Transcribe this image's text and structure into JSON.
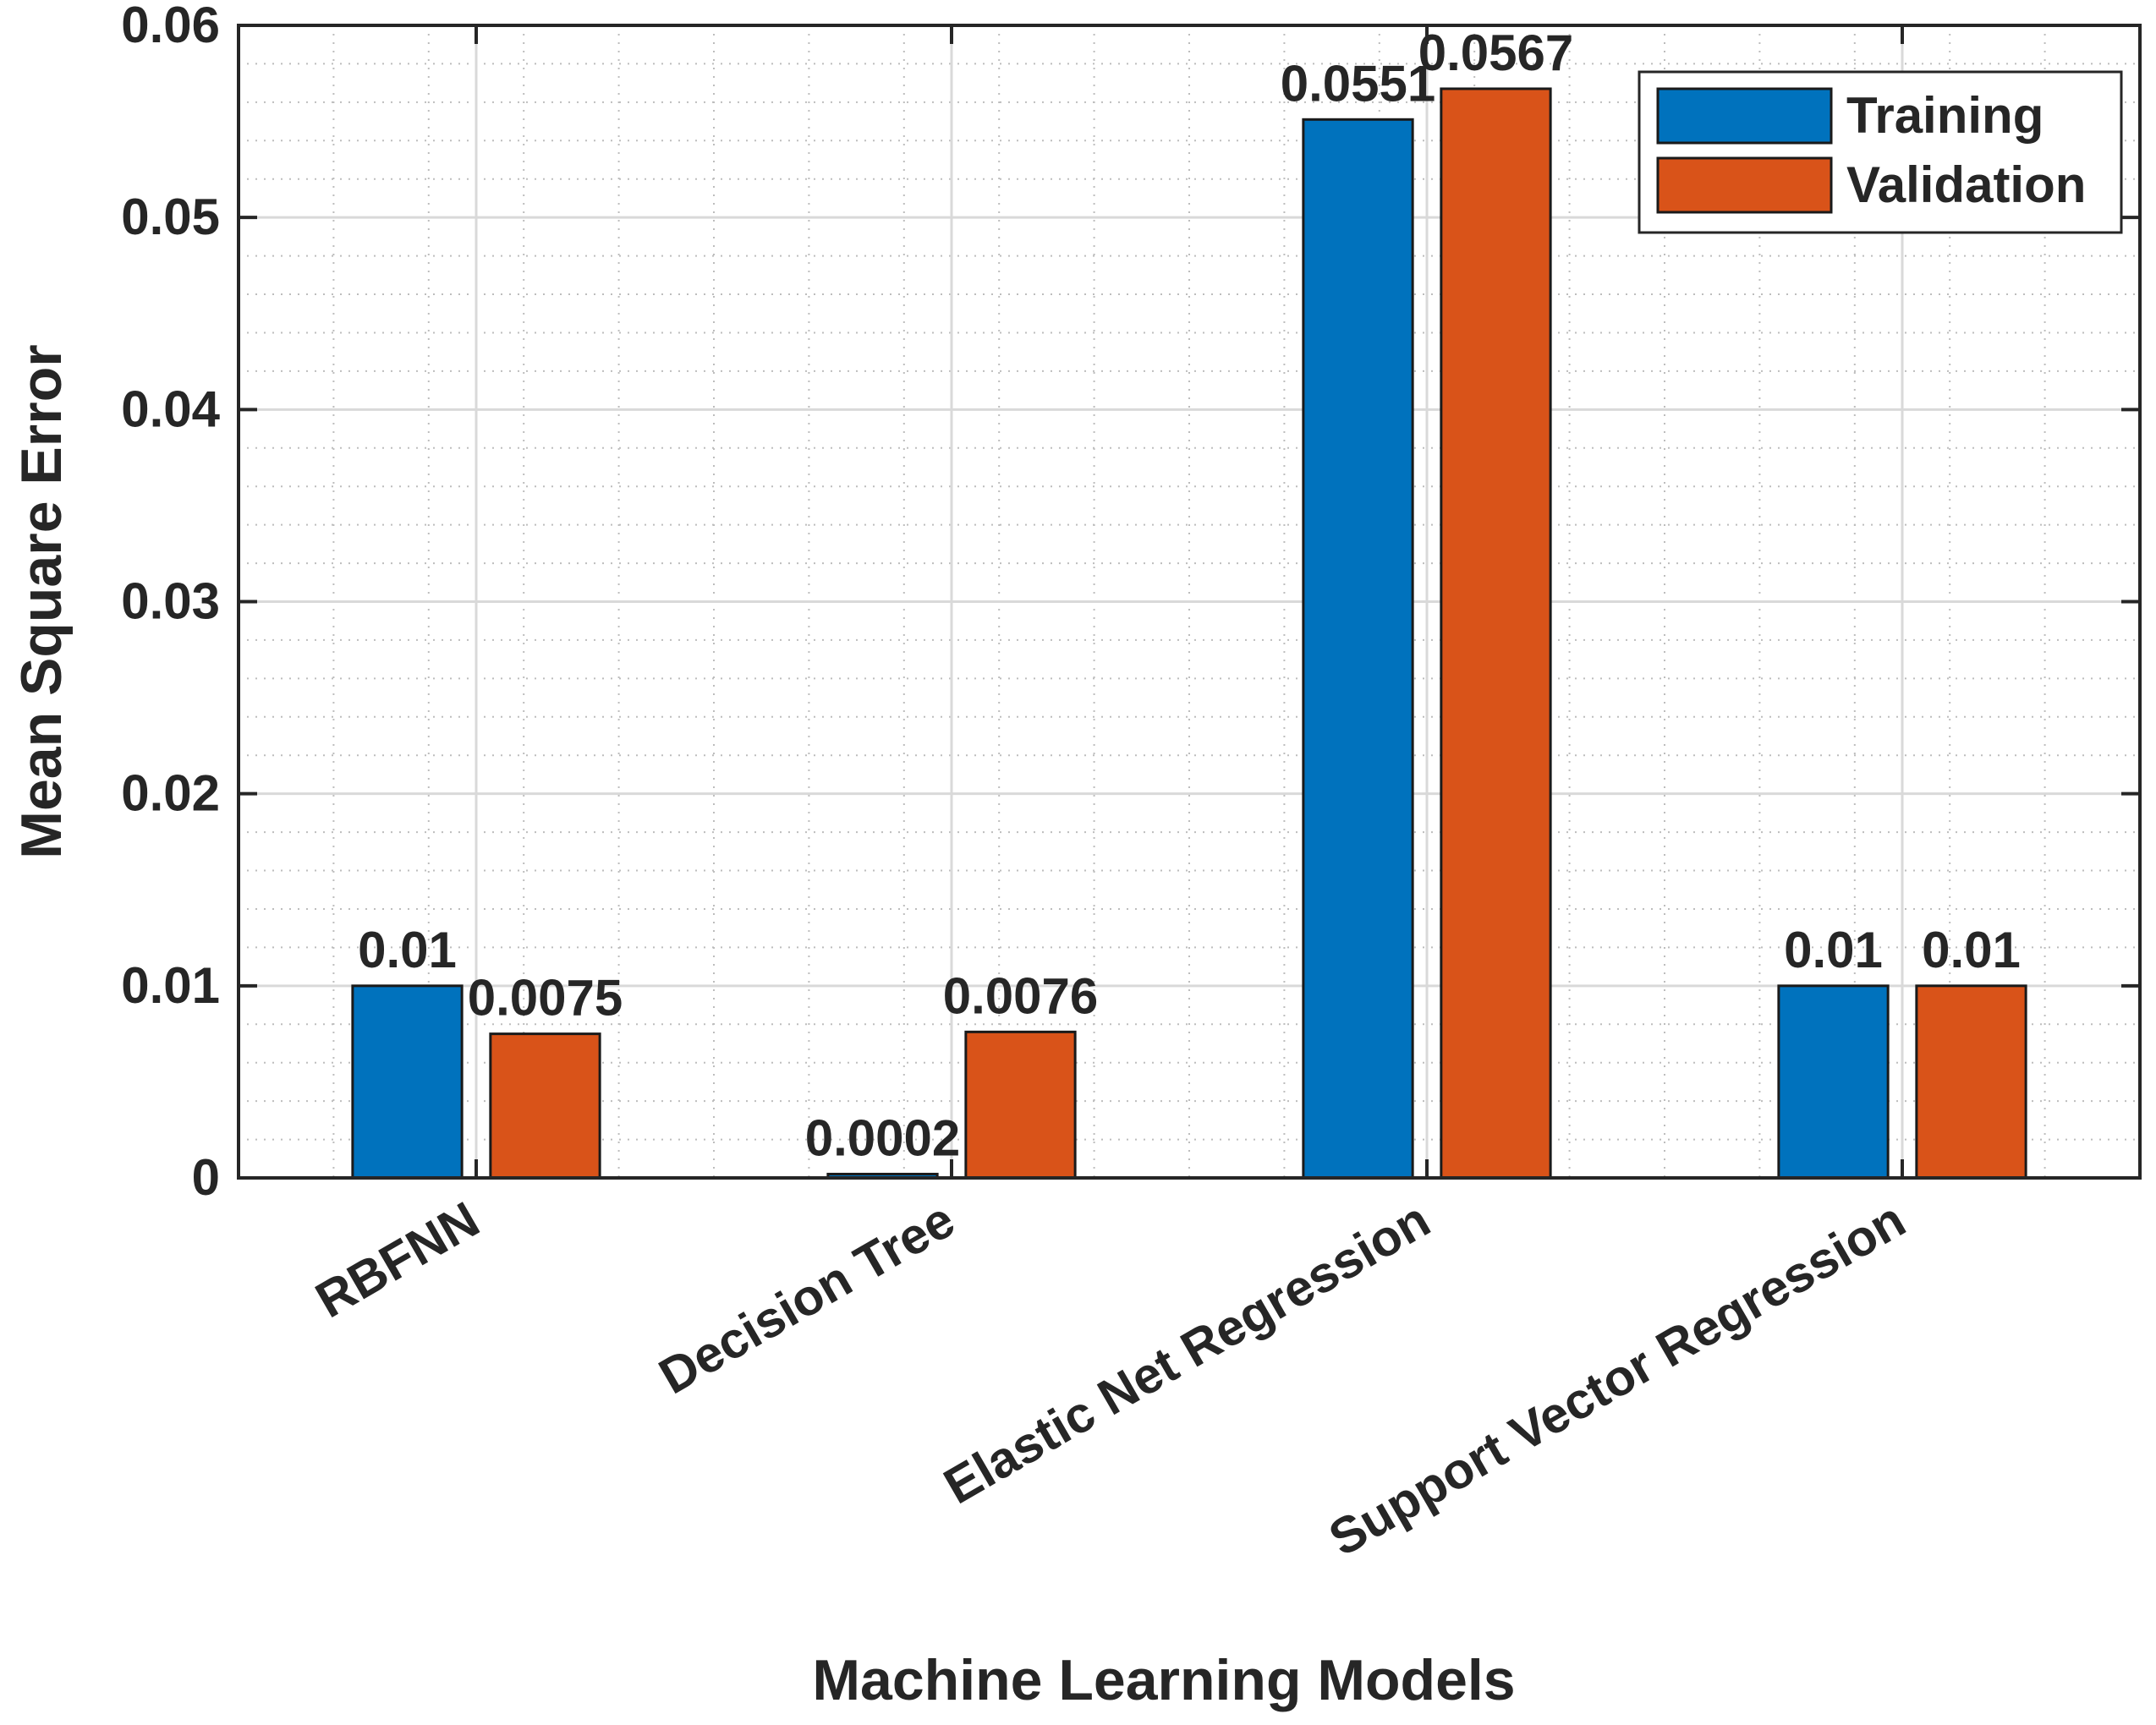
{
  "chart_data": {
    "type": "bar",
    "xlabel": "Machine Learning Models",
    "ylabel": "Mean Square Error",
    "ylim": [
      0,
      0.06
    ],
    "yticks": [
      "0",
      "0.01",
      "0.02",
      "0.03",
      "0.04",
      "0.05",
      "0.06"
    ],
    "ytick_values": [
      0,
      0.01,
      0.02,
      0.03,
      0.04,
      0.05,
      0.06
    ],
    "categories": [
      "RBFNN",
      "Decision Tree",
      "Elastic Net Regression",
      "Support Vector Regression"
    ],
    "series": [
      {
        "name": "Training",
        "color": "#0072BD",
        "values": [
          0.01,
          0.0002,
          0.0551,
          0.01
        ],
        "labels": [
          "0.01",
          "0.0002",
          "0.0551",
          "0.01"
        ]
      },
      {
        "name": "Validation",
        "color": "#D95319",
        "values": [
          0.0075,
          0.0076,
          0.0567,
          0.01
        ],
        "labels": [
          "0.0075",
          "0.0076",
          "0.0567",
          "0.01"
        ]
      }
    ],
    "grid": true,
    "minor_grid": true,
    "legend_position": "top-right"
  }
}
